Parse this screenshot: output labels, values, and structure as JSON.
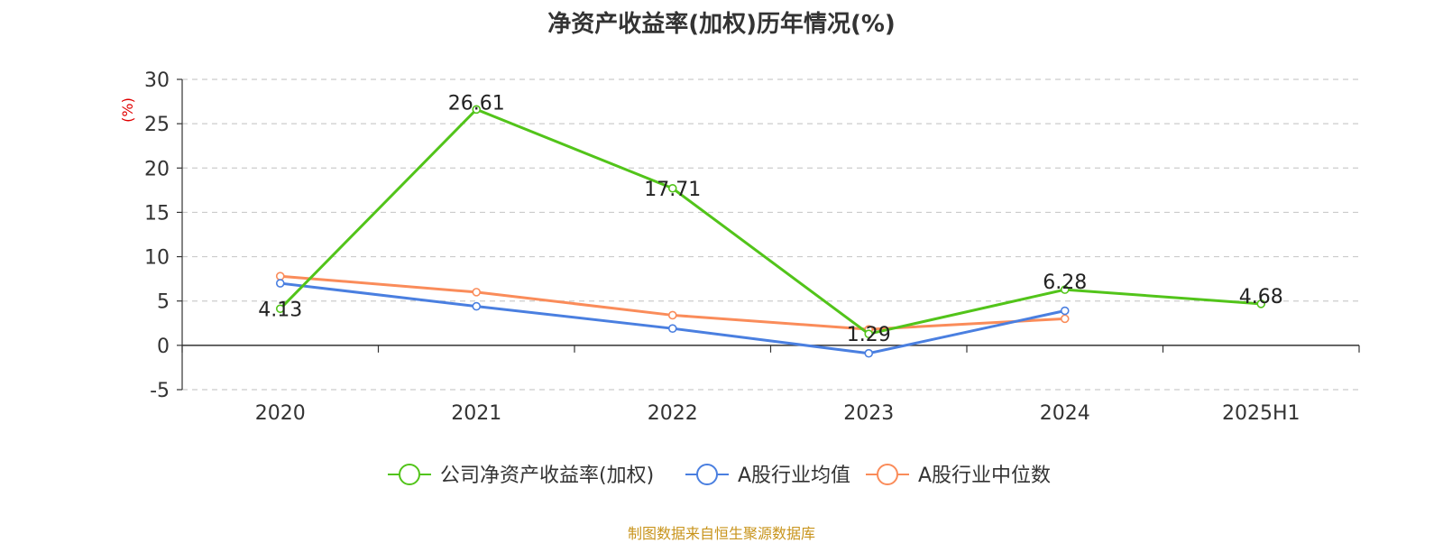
{
  "chart_data": {
    "type": "line",
    "title": "净资产收益率(加权)历年情况(%)",
    "ylabel": "(%)",
    "categories": [
      "2020",
      "2021",
      "2022",
      "2023",
      "2024",
      "2025H1"
    ],
    "ylim": [
      -5,
      30
    ],
    "yticks": [
      30,
      25,
      20,
      15,
      10,
      5,
      0,
      -5
    ],
    "grid": true,
    "legend_position": "bottom",
    "series": [
      {
        "name": "公司净资产收益率(加权)",
        "color": "#52c41a",
        "values": [
          4.13,
          26.61,
          17.71,
          1.29,
          6.28,
          4.68
        ],
        "labels": [
          "4.13",
          "26.61",
          "17.71",
          "1.29",
          "6.28",
          "4.68"
        ]
      },
      {
        "name": "A股行业均值",
        "color": "#4a7fe0",
        "values": [
          7.0,
          4.4,
          1.9,
          -0.9,
          3.9,
          null
        ]
      },
      {
        "name": "A股行业中位数",
        "color": "#fa8c5a",
        "values": [
          7.8,
          6.0,
          3.4,
          1.8,
          3.0,
          null
        ]
      }
    ]
  },
  "unit_color": "#e00000",
  "source_note": "制图数据来自恒生聚源数据库",
  "source_color": "#c8941c"
}
